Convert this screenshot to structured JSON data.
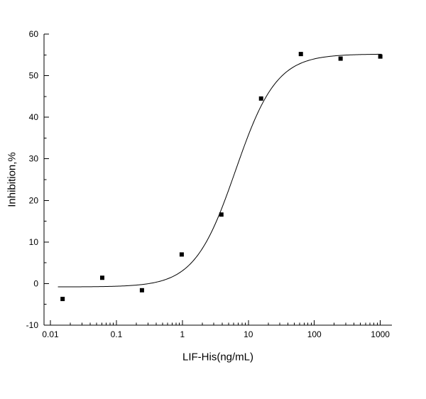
{
  "chart_data": {
    "type": "scatter",
    "title": "",
    "xlabel": "LIF-His(ng/mL)",
    "ylabel": "Inhibition,%",
    "x_scale": "log",
    "grid": false,
    "legend": "none",
    "xlim": [
      0.008,
      1500
    ],
    "ylim": [
      -10,
      60
    ],
    "x_ticks": [
      0.01,
      0.1,
      1,
      10,
      100,
      1000
    ],
    "x_tick_labels": [
      "0.01",
      "0.1",
      "1",
      "10",
      "100",
      "1000"
    ],
    "y_ticks": [
      -10,
      0,
      10,
      20,
      30,
      40,
      50,
      60
    ],
    "points": {
      "x": [
        0.0153,
        0.061,
        0.244,
        0.977,
        3.9,
        15.6,
        62.5,
        250,
        1000
      ],
      "y": [
        -3.7,
        1.4,
        -1.6,
        7.0,
        16.6,
        44.5,
        55.2,
        54.1,
        54.6
      ]
    },
    "fit_curve": {
      "model": "4-parameter-logistic",
      "bottom": -0.8,
      "top": 55.2,
      "ec50": 6.4,
      "hill": 1.4,
      "x_start": 0.013,
      "x_end": 1050
    },
    "marker": {
      "shape": "square",
      "color": "#000000",
      "size": 6
    },
    "line_color": "#000000",
    "axis_color": "#000000",
    "background": "#ffffff"
  }
}
